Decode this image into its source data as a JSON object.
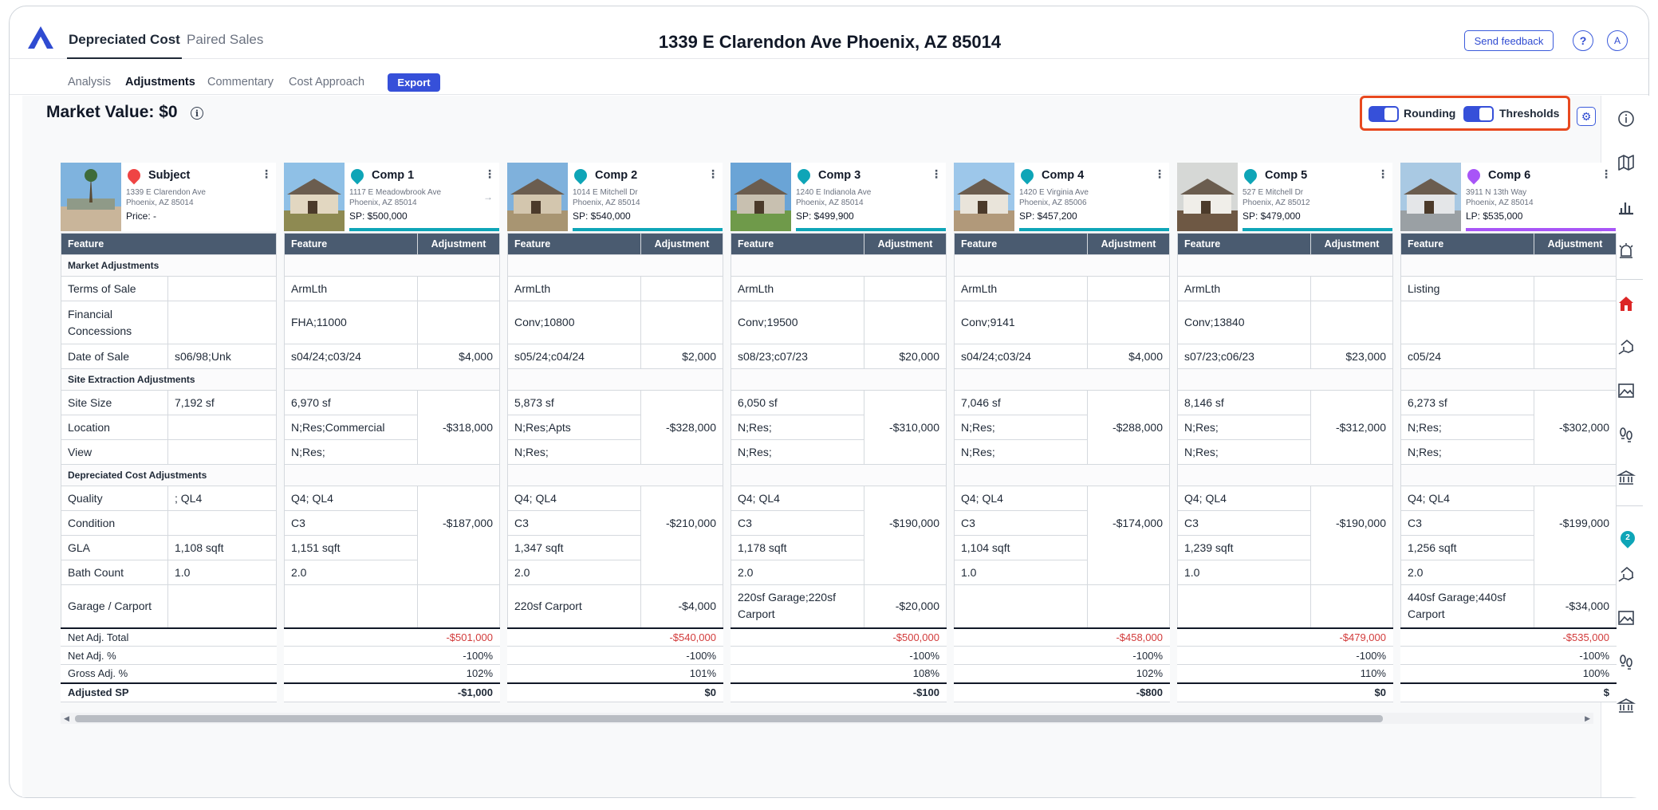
{
  "header": {
    "tabs": [
      {
        "label": "Depreciated Cost"
      },
      {
        "label": "Paired Sales"
      }
    ],
    "address": "1339 E Clarendon Ave Phoenix, AZ 85014",
    "feedback_label": "Send feedback",
    "help_label": "?",
    "avatar_label": "A"
  },
  "subnav": {
    "tabs": [
      {
        "label": "Analysis"
      },
      {
        "label": "Adjustments"
      },
      {
        "label": "Commentary"
      },
      {
        "label": "Cost Approach"
      }
    ],
    "export_label": "Export"
  },
  "market_value": "Market Value: $0",
  "toggles": {
    "rounding_label": "Rounding",
    "thresholds_label": "Thresholds",
    "rounding_on": true,
    "thresholds_on": true
  },
  "colors": {
    "accent": "#3650d9",
    "subject": "#ef4444",
    "comp": "#0ea5b7",
    "listing": "#a855f7",
    "positive": "#1a9b6a",
    "negative": "#d23b3b"
  },
  "rail_icons": [
    "info-icon",
    "map-icon",
    "bar-chart-icon",
    "alarm-icon",
    "home-icon",
    "house-hand-icon",
    "image-icon",
    "footprints-icon",
    "bank-icon",
    "pin-badge-icon",
    "house-hand-icon",
    "image-icon",
    "footprints-icon",
    "bank-icon"
  ],
  "rail_badge": "2",
  "columns": {
    "feature": "Feature",
    "adjustment": "Adjustment"
  },
  "sections": {
    "market": "Market Adjustments",
    "site": "Site Extraction Adjustments",
    "cost": "Depreciated Cost Adjustments"
  },
  "row_labels": {
    "terms": "Terms of Sale",
    "financial": "Financial Concessions",
    "date": "Date of Sale",
    "site_size": "Site Size",
    "location": "Location",
    "view": "View",
    "quality": "Quality",
    "condition": "Condition",
    "gla": "GLA",
    "bath": "Bath Count",
    "garage": "Garage / Carport",
    "net_total": "Net Adj. Total",
    "net_pct": "Net Adj. %",
    "gross_pct": "Gross Adj. %",
    "adjusted_sp": "Adjusted SP"
  },
  "subject": {
    "title": "Subject",
    "addr1": "1339 E Clarendon Ave",
    "addr2": "Phoenix, AZ 85014",
    "price": "Price: -",
    "terms": "",
    "financial": "",
    "date": "s06/98;Unk",
    "site_size": "7,192 sf",
    "location": "",
    "view": "",
    "quality": "; QL4",
    "condition": "",
    "gla": "1,108 sqft",
    "bath": "1.0",
    "garage": ""
  },
  "comps": [
    {
      "title": "Comp 1",
      "addr1": "1117 E Meadowbrook Ave",
      "addr2": "Phoenix, AZ 85014",
      "price": "SP: $500,000",
      "type": "sale",
      "terms": "ArmLth",
      "financial": "FHA;11000",
      "date": "s04/24;c03/24",
      "date_adj": "$4,000",
      "site_size": "6,970 sf",
      "location": "N;Res;Commercial",
      "view": "N;Res;",
      "site_adj": "-$318,000",
      "quality": "Q4; QL4",
      "condition": "C3",
      "cost_adj": "-$187,000",
      "gla": "1,151 sqft",
      "bath": "2.0",
      "garage": "",
      "garage_adj": "",
      "net_total": "-$501,000",
      "net_pct": "-100%",
      "gross_pct": "102%",
      "adjusted_sp": "-$1,000"
    },
    {
      "title": "Comp 2",
      "addr1": "1014 E Mitchell Dr",
      "addr2": "Phoenix, AZ 85014",
      "price": "SP: $540,000",
      "type": "sale",
      "terms": "ArmLth",
      "financial": "Conv;10800",
      "date": "s05/24;c04/24",
      "date_adj": "$2,000",
      "site_size": "5,873 sf",
      "location": "N;Res;Apts",
      "view": "N;Res;",
      "site_adj": "-$328,000",
      "quality": "Q4; QL4",
      "condition": "C3",
      "cost_adj": "-$210,000",
      "gla": "1,347 sqft",
      "bath": "2.0",
      "garage": "220sf Carport",
      "garage_adj": "-$4,000",
      "net_total": "-$540,000",
      "net_pct": "-100%",
      "gross_pct": "101%",
      "adjusted_sp": "$0"
    },
    {
      "title": "Comp 3",
      "addr1": "1240 E Indianola Ave",
      "addr2": "Phoenix, AZ 85014",
      "price": "SP: $499,900",
      "type": "sale",
      "terms": "ArmLth",
      "financial": "Conv;19500",
      "date": "s08/23;c07/23",
      "date_adj": "$20,000",
      "site_size": "6,050 sf",
      "location": "N;Res;",
      "view": "N;Res;",
      "site_adj": "-$310,000",
      "quality": "Q4; QL4",
      "condition": "C3",
      "cost_adj": "-$190,000",
      "gla": "1,178 sqft",
      "bath": "2.0",
      "garage": "220sf Garage;220sf Carport",
      "garage_adj": "-$20,000",
      "net_total": "-$500,000",
      "net_pct": "-100%",
      "gross_pct": "108%",
      "adjusted_sp": "-$100"
    },
    {
      "title": "Comp 4",
      "addr1": "1420 E Virginia Ave",
      "addr2": "Phoenix, AZ 85006",
      "price": "SP: $457,200",
      "type": "sale",
      "terms": "ArmLth",
      "financial": "Conv;9141",
      "date": "s04/24;c03/24",
      "date_adj": "$4,000",
      "site_size": "7,046 sf",
      "location": "N;Res;",
      "view": "N;Res;",
      "site_adj": "-$288,000",
      "quality": "Q4; QL4",
      "condition": "C3",
      "cost_adj": "-$174,000",
      "gla": "1,104 sqft",
      "bath": "1.0",
      "garage": "",
      "garage_adj": "",
      "net_total": "-$458,000",
      "net_pct": "-100%",
      "gross_pct": "102%",
      "adjusted_sp": "-$800"
    },
    {
      "title": "Comp 5",
      "addr1": "527 E Mitchell Dr",
      "addr2": "Phoenix, AZ 85012",
      "price": "SP: $479,000",
      "type": "sale",
      "terms": "ArmLth",
      "financial": "Conv;13840",
      "date": "s07/23;c06/23",
      "date_adj": "$23,000",
      "site_size": "8,146 sf",
      "location": "N;Res;",
      "view": "N;Res;",
      "site_adj": "-$312,000",
      "quality": "Q4; QL4",
      "condition": "C3",
      "cost_adj": "-$190,000",
      "gla": "1,239 sqft",
      "bath": "1.0",
      "garage": "",
      "garage_adj": "",
      "net_total": "-$479,000",
      "net_pct": "-100%",
      "gross_pct": "110%",
      "adjusted_sp": "$0"
    },
    {
      "title": "Comp 6",
      "addr1": "3911 N 13th Way",
      "addr2": "Phoenix, AZ 85014",
      "price": "LP: $535,000",
      "type": "listing",
      "terms": "Listing",
      "financial": "",
      "date": "c05/24",
      "date_adj": "",
      "site_size": "6,273 sf",
      "location": "N;Res;",
      "view": "N;Res;",
      "site_adj": "-$302,000",
      "quality": "Q4; QL4",
      "condition": "C3",
      "cost_adj": "-$199,000",
      "gla": "1,256 sqft",
      "bath": "2.0",
      "garage": "440sf Garage;440sf Carport",
      "garage_adj": "-$34,000",
      "net_total": "-$535,000",
      "net_pct": "-100%",
      "gross_pct": "100%",
      "adjusted_sp": "$"
    }
  ]
}
